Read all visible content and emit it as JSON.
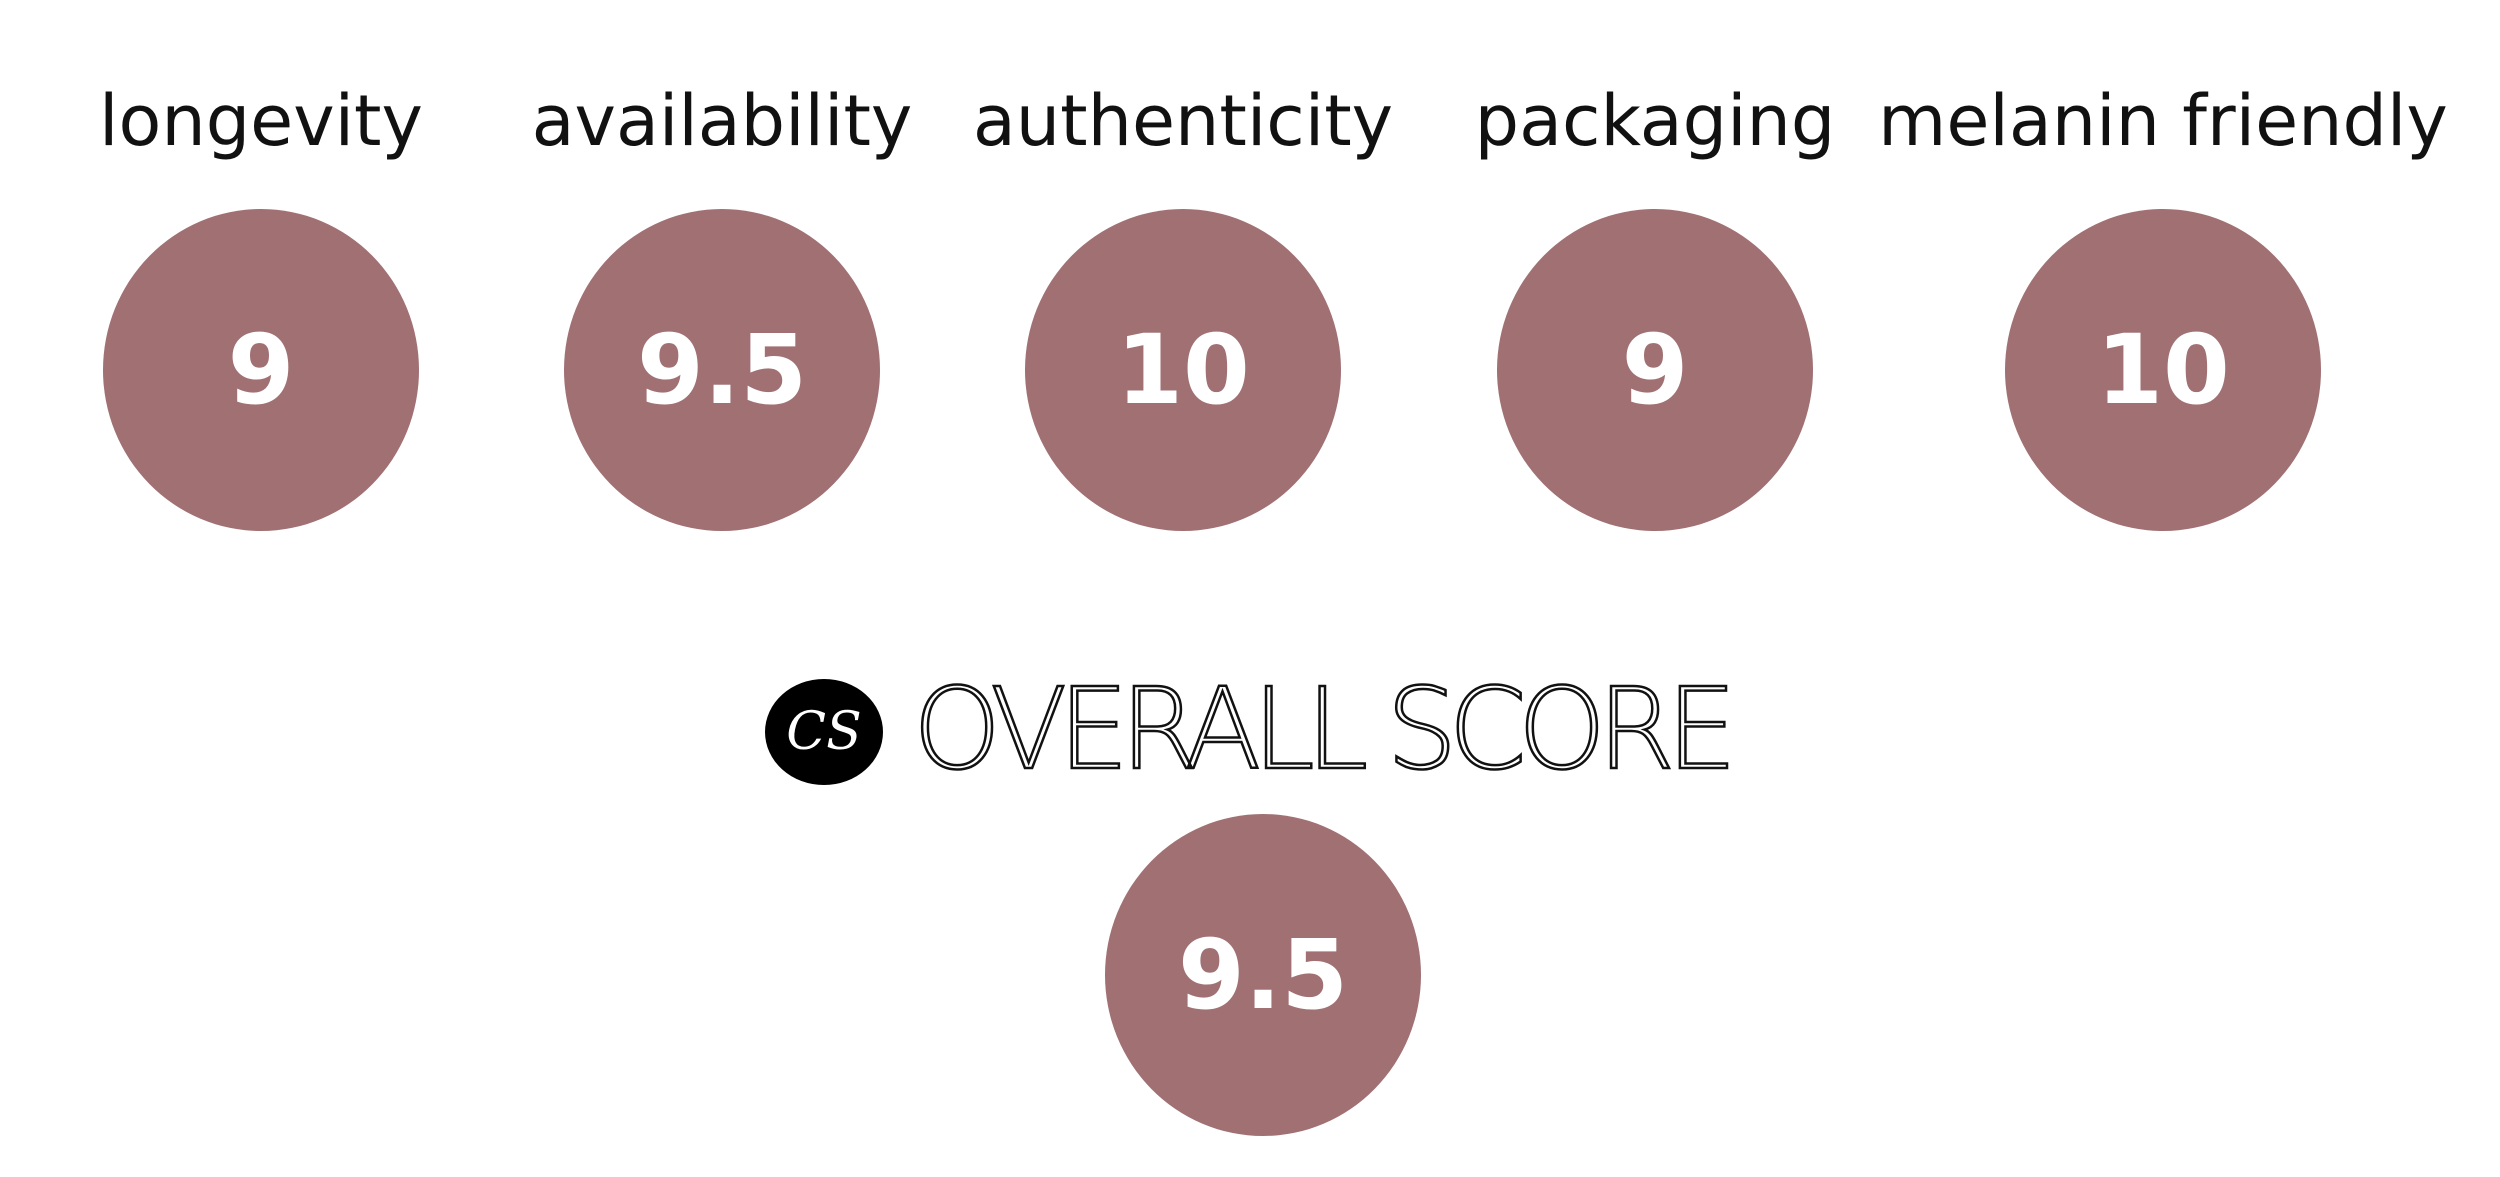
{
  "scores": [
    {
      "label": "longevity",
      "value": "9"
    },
    {
      "label": "availability",
      "value": "9.5"
    },
    {
      "label": "authenticity",
      "value": "10"
    },
    {
      "label": "packaging",
      "value": "9"
    },
    {
      "label": "melanin friendly",
      "value": "10"
    }
  ],
  "overall": {
    "logo": "CS",
    "label": "OVERALL SCORE",
    "value": "9.5"
  }
}
